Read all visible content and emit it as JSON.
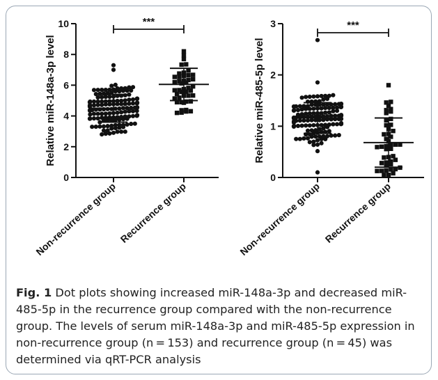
{
  "chart_data": [
    {
      "type": "scatter",
      "subtype": "dot-plot",
      "ylabel": "Relative miR-148a-3p level",
      "ylim": [
        0,
        10
      ],
      "yticks": [
        0,
        2,
        4,
        6,
        8,
        10
      ],
      "categories": [
        "Non-recurrence group",
        "Recurrence group"
      ],
      "significance": "***",
      "groups": [
        {
          "category": "Non-recurrence group",
          "marker": "circle",
          "n": 153,
          "mean": 4.5,
          "sd": 0.9,
          "min": 2.8,
          "max": 7.3
        },
        {
          "category": "Recurrence group",
          "marker": "square",
          "n": 45,
          "mean": 6.05,
          "sd": 1.05,
          "min": 4.2,
          "max": 8.2
        }
      ]
    },
    {
      "type": "scatter",
      "subtype": "dot-plot",
      "ylabel": "Relative miR-485-5p  level",
      "ylim": [
        0,
        3
      ],
      "yticks": [
        0,
        1,
        2,
        3
      ],
      "categories": [
        "Non-recurrence group",
        "Recurrence group"
      ],
      "significance": "***",
      "groups": [
        {
          "category": "Non-recurrence group",
          "marker": "circle",
          "n": 153,
          "mean": 1.16,
          "sd": 0.3,
          "min": 0.1,
          "max": 2.68
        },
        {
          "category": "Recurrence group",
          "marker": "square",
          "n": 45,
          "mean": 0.68,
          "sd": 0.48,
          "min": 0.05,
          "max": 1.8
        }
      ]
    }
  ],
  "caption": {
    "label": "Fig. 1",
    "text": "Dot plots showing increased miR-148a-3p and decreased miR-485-5p in the recurrence group compared with the non-recurrence group. The levels of serum miR-148a-3p and miR-485-5p expression in non-recurrence group (n = 153) and recurrence group (n = 45) was determined via qRT-PCR analysis"
  },
  "colors": {
    "marker": "#111111",
    "axis": "#111111",
    "border": "#9aa7b4"
  }
}
